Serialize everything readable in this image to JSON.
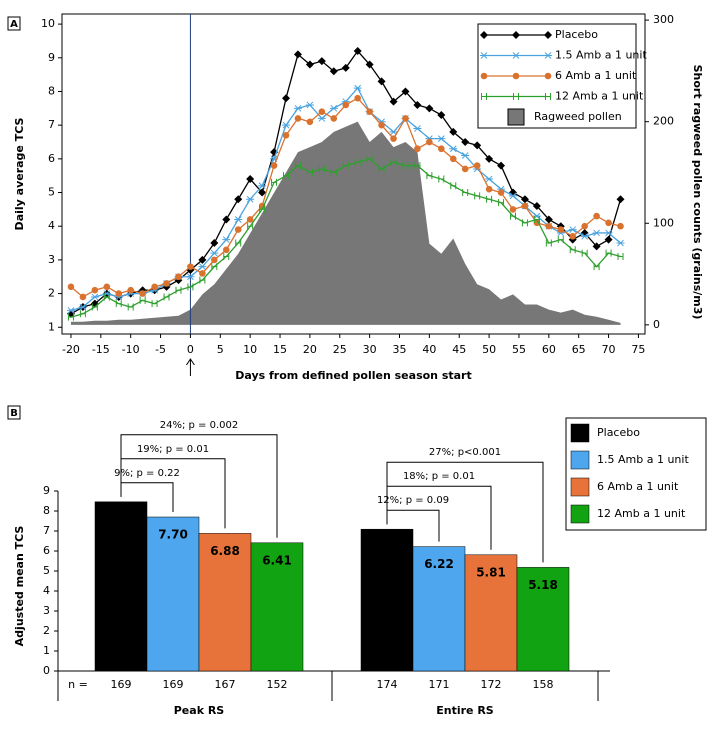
{
  "chart_data": [
    {
      "type": "line",
      "panel": "A",
      "xlabel": "Days from defined pollen season start",
      "ylabel": "Daily average TCS",
      "y2label": "Short ragweed pollen counts (grains/m3)",
      "x": [
        -20,
        -18,
        -16,
        -14,
        -12,
        -10,
        -8,
        -6,
        -4,
        -2,
        0,
        2,
        4,
        6,
        8,
        10,
        12,
        14,
        16,
        18,
        20,
        22,
        24,
        26,
        28,
        30,
        32,
        34,
        36,
        38,
        40,
        42,
        44,
        46,
        48,
        50,
        52,
        54,
        56,
        58,
        60,
        62,
        64,
        66,
        68,
        70,
        72
      ],
      "season_start_x": 0,
      "series": [
        {
          "name": "Placebo",
          "color": "#000000",
          "marker": "diamond",
          "values": [
            1.4,
            1.6,
            1.7,
            2.0,
            1.9,
            2.0,
            2.1,
            2.1,
            2.2,
            2.4,
            2.7,
            3.0,
            3.5,
            4.2,
            4.8,
            5.4,
            5.0,
            6.2,
            7.8,
            9.1,
            8.8,
            8.9,
            8.6,
            8.7,
            9.2,
            8.8,
            8.3,
            7.7,
            8.0,
            7.6,
            7.5,
            7.3,
            6.8,
            6.5,
            6.4,
            6.0,
            5.8,
            5.0,
            4.8,
            4.6,
            4.2,
            4.0,
            3.6,
            3.8,
            3.4,
            3.6,
            4.8
          ]
        },
        {
          "name": "1.5 Amb a 1 unit",
          "color": "#4aa3df",
          "marker": "asterisk",
          "values": [
            1.5,
            1.6,
            1.9,
            2.0,
            1.9,
            2.0,
            2.0,
            2.1,
            2.3,
            2.5,
            2.5,
            2.8,
            3.2,
            3.6,
            4.2,
            4.8,
            5.2,
            6.0,
            7.0,
            7.5,
            7.6,
            7.2,
            7.5,
            7.7,
            8.1,
            7.4,
            7.1,
            6.8,
            7.2,
            6.9,
            6.6,
            6.6,
            6.3,
            6.1,
            5.7,
            5.4,
            5.1,
            4.9,
            4.6,
            4.3,
            4.0,
            3.8,
            3.9,
            3.7,
            3.8,
            3.8,
            3.5
          ]
        },
        {
          "name": "6 Amb a 1 unit",
          "color": "#d9722e",
          "marker": "circle",
          "values": [
            2.2,
            1.9,
            2.1,
            2.2,
            2.0,
            2.1,
            2.0,
            2.2,
            2.3,
            2.5,
            2.8,
            2.6,
            3.0,
            3.3,
            3.9,
            4.2,
            4.6,
            5.8,
            6.7,
            7.2,
            7.1,
            7.4,
            7.2,
            7.6,
            7.8,
            7.4,
            7.0,
            6.6,
            7.2,
            6.3,
            6.5,
            6.3,
            6.0,
            5.7,
            5.8,
            5.1,
            5.0,
            4.5,
            4.6,
            4.1,
            4.0,
            3.9,
            3.7,
            4.0,
            4.3,
            4.1,
            4.0
          ]
        },
        {
          "name": "12 Amb a 1 unit",
          "color": "#2ea02e",
          "marker": "h",
          "values": [
            1.3,
            1.4,
            1.6,
            1.9,
            1.7,
            1.6,
            1.8,
            1.7,
            1.9,
            2.1,
            2.2,
            2.4,
            2.8,
            3.1,
            3.5,
            4.0,
            4.5,
            5.3,
            5.5,
            5.8,
            5.6,
            5.7,
            5.6,
            5.8,
            5.9,
            6.0,
            5.7,
            5.9,
            5.8,
            5.8,
            5.5,
            5.4,
            5.2,
            5.0,
            4.9,
            4.8,
            4.7,
            4.3,
            4.1,
            4.2,
            3.5,
            3.6,
            3.3,
            3.2,
            2.8,
            3.2,
            3.1
          ]
        },
        {
          "name": "Ragweed pollen",
          "color": "#777777",
          "type": "area",
          "axis": "y2",
          "values": [
            3,
            3,
            4,
            4,
            5,
            5,
            6,
            7,
            8,
            9,
            15,
            30,
            40,
            55,
            70,
            90,
            110,
            130,
            150,
            170,
            175,
            180,
            190,
            195,
            200,
            180,
            190,
            175,
            180,
            170,
            80,
            70,
            85,
            60,
            40,
            35,
            25,
            30,
            20,
            20,
            15,
            12,
            15,
            10,
            8,
            5,
            2
          ]
        }
      ],
      "xlim": [
        -21.5,
        76.1
      ],
      "xticks": [
        -20,
        -15,
        -10,
        -5,
        0,
        5,
        10,
        15,
        20,
        25,
        30,
        35,
        40,
        45,
        50,
        55,
        60,
        65,
        70,
        75
      ],
      "ylim": [
        0.8,
        10.3
      ],
      "yticks": [
        1,
        2,
        3,
        4,
        5,
        6,
        7,
        8,
        9,
        10
      ],
      "y2lim": [
        -9,
        306
      ],
      "y2ticks": [
        0,
        100,
        200,
        300
      ],
      "legend": "upper right"
    },
    {
      "type": "bar",
      "panel": "B",
      "ylabel": "Adjusted mean TCS",
      "n_label": "n =",
      "categories": [
        "Peak RS",
        "Entire RS"
      ],
      "series": [
        {
          "name": "Placebo",
          "color": "#000000",
          "values": [
            8.46,
            7.09
          ],
          "value_labels": [
            "8.46",
            "7.09"
          ],
          "n": [
            169,
            174
          ]
        },
        {
          "name": "1.5 Amb a 1 unit",
          "color": "#4da6ee",
          "values": [
            7.7,
            6.22
          ],
          "value_labels": [
            "7.70",
            "6.22"
          ],
          "n": [
            169,
            171
          ],
          "comparisons": [
            "9%; p = 0.22",
            "12%; p = 0.09"
          ]
        },
        {
          "name": "6 Amb a 1 unit",
          "color": "#e8733a",
          "values": [
            6.88,
            5.81
          ],
          "value_labels": [
            "6.88",
            "5.81"
          ],
          "n": [
            167,
            172
          ],
          "comparisons": [
            "19%; p = 0.01",
            "18%; p = 0.01"
          ]
        },
        {
          "name": "12 Amb a 1 unit",
          "color": "#12a312",
          "values": [
            6.41,
            5.18
          ],
          "value_labels": [
            "6.41",
            "5.18"
          ],
          "n": [
            152,
            158
          ],
          "comparisons": [
            "24%; p = 0.002",
            "27%; p<0.001"
          ]
        }
      ],
      "ylim": [
        0,
        9
      ],
      "yticks": [
        0,
        1,
        2,
        3,
        4,
        5,
        6,
        7,
        8,
        9
      ],
      "legend": "upper right"
    }
  ]
}
